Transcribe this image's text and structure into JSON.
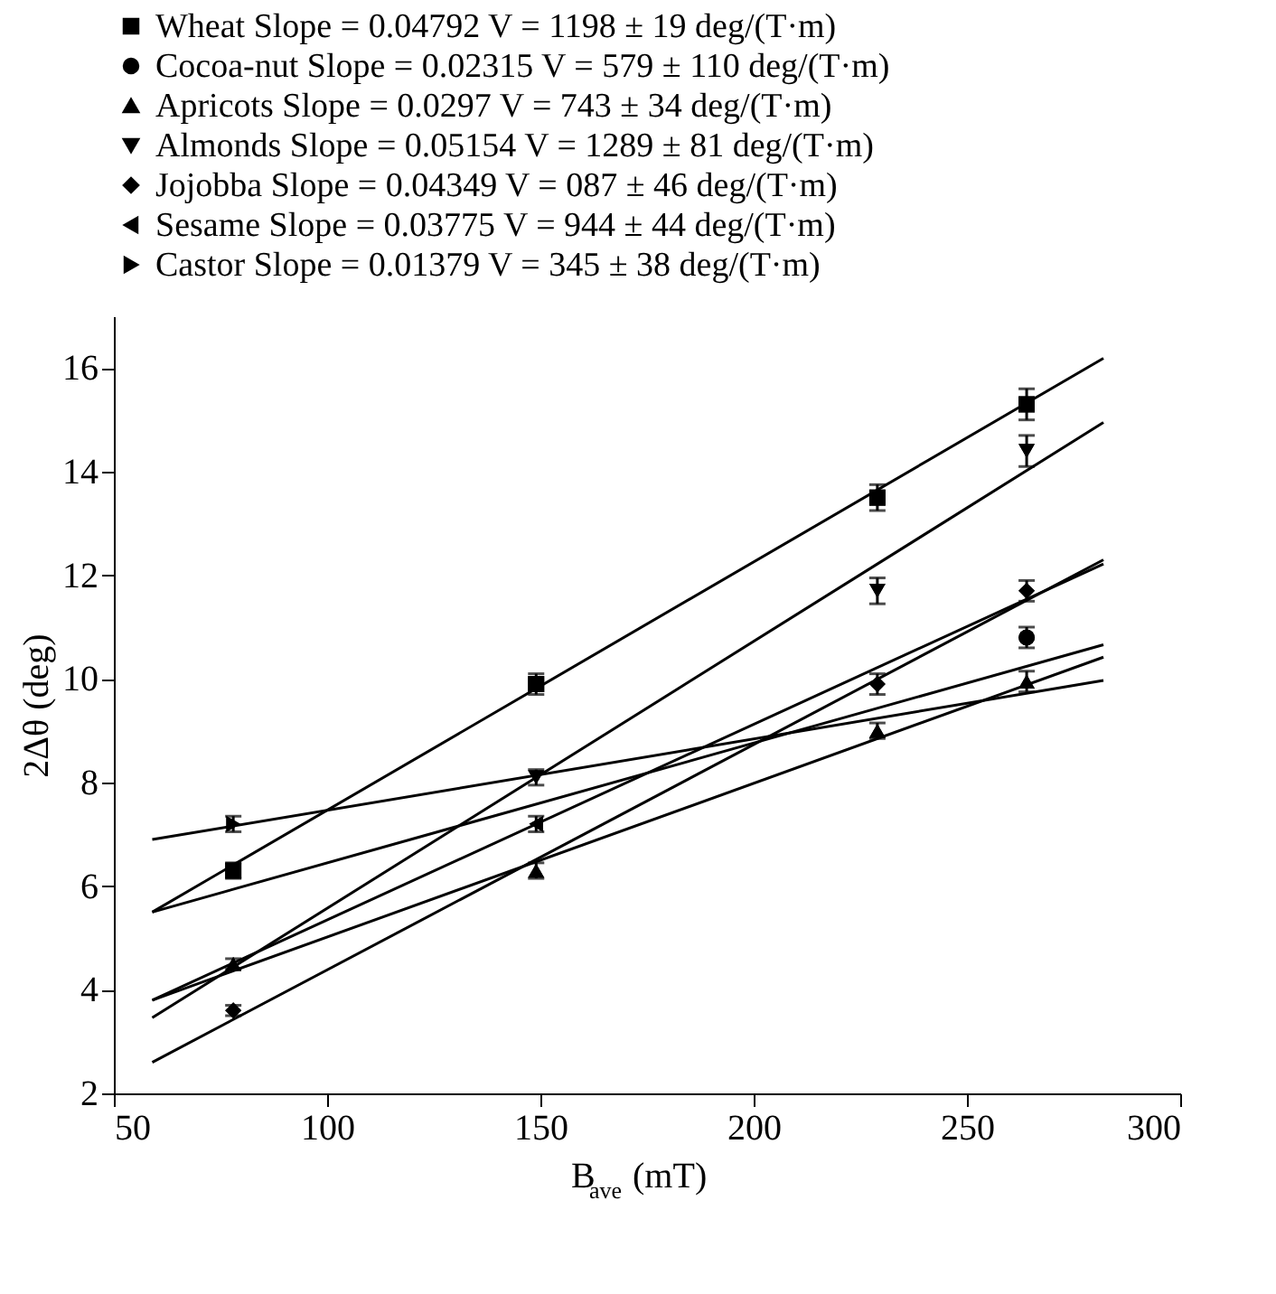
{
  "chart_data": {
    "type": "scatter",
    "xlabel": "B$_{ave}$ (mT)",
    "ylabel": "2Δθ (deg)",
    "xlim": [
      50,
      300
    ],
    "ylim": [
      2,
      17
    ],
    "xticks": [
      50,
      100,
      150,
      200,
      250,
      300
    ],
    "yticks": [
      2,
      4,
      6,
      8,
      10,
      12,
      14,
      16
    ],
    "grid": false,
    "legend": "top",
    "series": [
      {
        "name": "Wheat Slope = 0.04792  V = 1198 ± 19 deg/(T·m)",
        "color": "#000000",
        "marker": "square",
        "x": [
          78,
          149,
          229,
          264
        ],
        "values": [
          6.3,
          9.9,
          13.5,
          15.3
        ],
        "errors": [
          0.15,
          0.2,
          0.25,
          0.3
        ]
      },
      {
        "name": "Cocoa-nut Slope = 0.02315 V = 579 ± 110 deg/(T·m)",
        "color": "#000000",
        "marker": "circle",
        "x": [
          264
        ],
        "values": [
          10.8
        ],
        "errors": [
          0.2
        ]
      },
      {
        "name": "Apricots Slope = 0.0297  V = 743 ± 34 deg/(T·m)",
        "color": "#000000",
        "marker": "triangle",
        "x": [
          78,
          149,
          229,
          264
        ],
        "values": [
          4.5,
          6.3,
          9.0,
          9.95
        ],
        "errors": [
          0.1,
          0.15,
          0.15,
          0.2
        ]
      },
      {
        "name": "Almonds Slope = 0.05154 V = 1289 ± 81 deg/(T·m)",
        "color": "#000000",
        "marker": "triangle-down",
        "x": [
          149,
          229,
          264
        ],
        "values": [
          8.1,
          11.7,
          14.4
        ],
        "errors": [
          0.15,
          0.25,
          0.3
        ]
      },
      {
        "name": "Jojobba Slope = 0.04349 V = 087 ± 46 deg/(T·m)",
        "color": "#000000",
        "marker": "diamond",
        "x": [
          78,
          229,
          264
        ],
        "values": [
          3.6,
          9.9,
          11.7
        ],
        "errors": [
          0.1,
          0.2,
          0.2
        ]
      },
      {
        "name": "Sesame Slope = 0.03775 V = 944 ± 44 deg/(T·m)",
        "color": "#000000",
        "marker": "triangle-left",
        "x": [
          149
        ],
        "values": [
          7.2
        ],
        "errors": [
          0.15
        ]
      },
      {
        "name": "Castor Slope = 0.01379 V = 345 ± 38 deg/(T·m)",
        "color": "#000000",
        "marker": "triangle-right",
        "x": [
          78
        ],
        "values": [
          7.2
        ],
        "errors": [
          0.15
        ]
      },
      {
        "type": "line",
        "color": "#000000",
        "x": [
          59,
          282
        ],
        "values": [
          5.5,
          16.19
        ]
      },
      {
        "type": "line",
        "color": "#000000",
        "x": [
          59,
          282
        ],
        "values": [
          5.5,
          10.66
        ]
      },
      {
        "type": "line",
        "color": "#000000",
        "x": [
          59,
          282
        ],
        "values": [
          3.8,
          10.42
        ]
      },
      {
        "type": "line",
        "color": "#000000",
        "x": [
          59,
          282
        ],
        "values": [
          3.46,
          14.95
        ]
      },
      {
        "type": "line",
        "color": "#000000",
        "x": [
          59,
          282
        ],
        "values": [
          2.6,
          12.3
        ]
      },
      {
        "type": "line",
        "color": "#000000",
        "x": [
          59,
          282
        ],
        "values": [
          3.8,
          12.22
        ]
      },
      {
        "type": "line",
        "color": "#000000",
        "x": [
          59,
          282
        ],
        "values": [
          6.9,
          9.97
        ]
      }
    ]
  }
}
